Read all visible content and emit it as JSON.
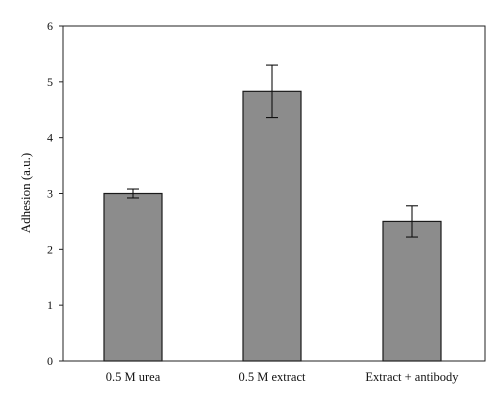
{
  "chart_data": {
    "type": "bar",
    "title": "",
    "xlabel": "",
    "ylabel": "Adhesion (a.u.)",
    "ylim": [
      0,
      6
    ],
    "yticks": [
      0,
      1,
      2,
      3,
      4,
      5,
      6
    ],
    "ytick_labels": [
      "0",
      "1",
      "2",
      "3",
      "4",
      "5",
      "6"
    ],
    "grid": false,
    "legend": "none",
    "categories": [
      "0.5 M urea",
      "0.5 M extract",
      "Extract + antibody"
    ],
    "values": [
      3.0,
      4.83,
      2.5
    ],
    "error": [
      0.08,
      0.47,
      0.28
    ],
    "bar_color": "#8c8c8c",
    "edge_color": "#1a1a1a"
  }
}
